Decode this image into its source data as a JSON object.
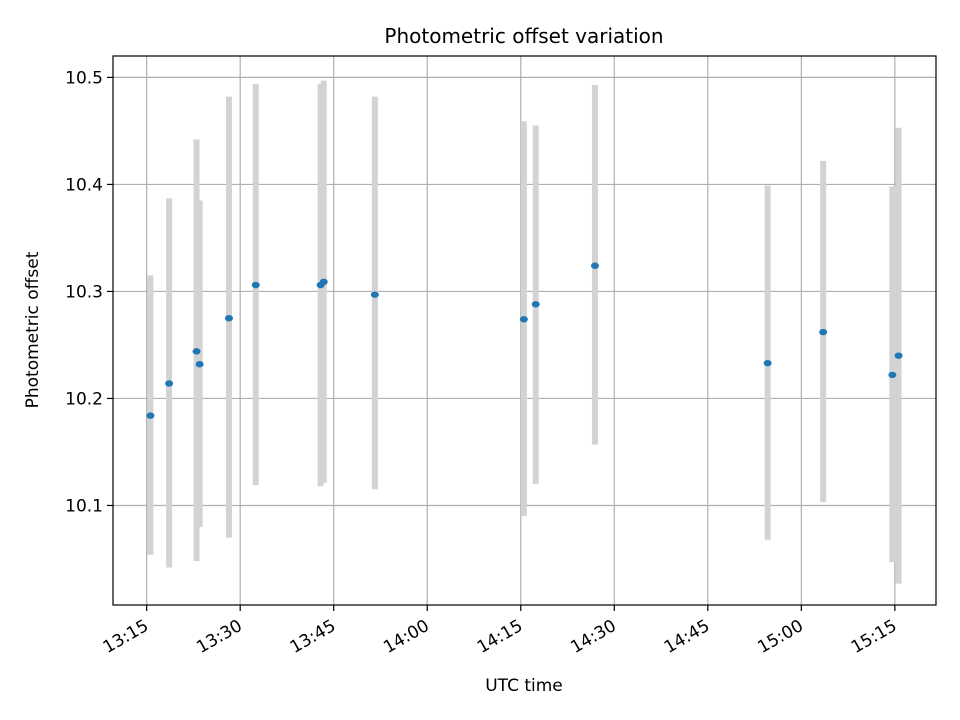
{
  "chart_data": {
    "type": "scatter",
    "title": "Photometric offset variation",
    "xlabel": "UTC time",
    "ylabel": "Photometric offset",
    "x_tick_labels": [
      "13:15",
      "13:30",
      "13:45",
      "14:00",
      "14:15",
      "14:30",
      "14:45",
      "15:00",
      "15:15"
    ],
    "x_tick_minutes": [
      795,
      810,
      825,
      840,
      855,
      870,
      885,
      900,
      915
    ],
    "y_tick_labels": [
      "10.1",
      "10.2",
      "10.3",
      "10.4",
      "10.5"
    ],
    "y_ticks": [
      10.1,
      10.2,
      10.3,
      10.4,
      10.5
    ],
    "xlim_minutes": [
      789.6,
      921.6
    ],
    "ylim": [
      10.007,
      10.52
    ],
    "grid": true,
    "colors": {
      "point": "#1f77b4",
      "errorbar": "#d3d3d3",
      "grid": "#b0b0b0"
    },
    "points": [
      {
        "x": 795.6,
        "y": 10.184,
        "lo": 10.054,
        "hi": 10.315
      },
      {
        "x": 798.6,
        "y": 10.214,
        "lo": 10.042,
        "hi": 10.387
      },
      {
        "x": 803.0,
        "y": 10.244,
        "lo": 10.048,
        "hi": 10.442
      },
      {
        "x": 803.5,
        "y": 10.232,
        "lo": 10.08,
        "hi": 10.385
      },
      {
        "x": 808.2,
        "y": 10.275,
        "lo": 10.07,
        "hi": 10.482
      },
      {
        "x": 812.5,
        "y": 10.306,
        "lo": 10.119,
        "hi": 10.494
      },
      {
        "x": 822.9,
        "y": 10.306,
        "lo": 10.118,
        "hi": 10.494
      },
      {
        "x": 823.4,
        "y": 10.309,
        "lo": 10.121,
        "hi": 10.497
      },
      {
        "x": 831.6,
        "y": 10.297,
        "lo": 10.115,
        "hi": 10.482
      },
      {
        "x": 855.5,
        "y": 10.274,
        "lo": 10.09,
        "hi": 10.459
      },
      {
        "x": 857.4,
        "y": 10.288,
        "lo": 10.12,
        "hi": 10.455
      },
      {
        "x": 866.9,
        "y": 10.324,
        "lo": 10.157,
        "hi": 10.493
      },
      {
        "x": 894.6,
        "y": 10.233,
        "lo": 10.068,
        "hi": 10.399
      },
      {
        "x": 903.5,
        "y": 10.262,
        "lo": 10.103,
        "hi": 10.422
      },
      {
        "x": 914.6,
        "y": 10.222,
        "lo": 10.047,
        "hi": 10.398
      },
      {
        "x": 915.6,
        "y": 10.24,
        "lo": 10.027,
        "hi": 10.453
      }
    ]
  }
}
